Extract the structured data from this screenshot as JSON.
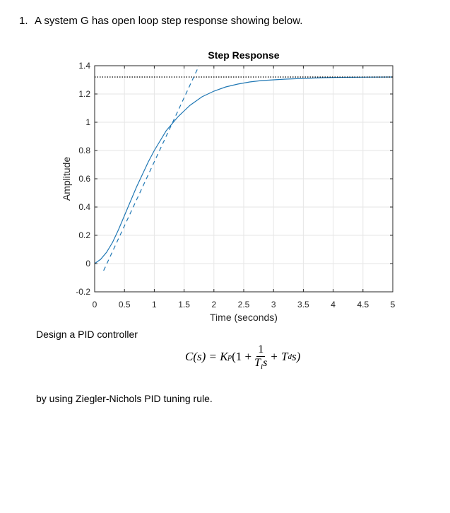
{
  "question": {
    "number": "1.",
    "text": "A system G has open loop step response showing below."
  },
  "chart_data": {
    "type": "line",
    "title": "Step Response",
    "xlabel": "Time (seconds)",
    "ylabel": "Amplitude",
    "xlim": [
      0,
      5
    ],
    "ylim": [
      -0.2,
      1.4
    ],
    "xticks": [
      0,
      0.5,
      1,
      1.5,
      2,
      2.5,
      3,
      3.5,
      4,
      4.5,
      5
    ],
    "xtick_labels": [
      "0",
      "0.5",
      "1",
      "1.5",
      "2",
      "2.5",
      "3",
      "3.5",
      "4",
      "4.5",
      "5"
    ],
    "yticks": [
      -0.2,
      0,
      0.2,
      0.4,
      0.6,
      0.8,
      1,
      1.2,
      1.4
    ],
    "ytick_labels": [
      "-0.2",
      "0",
      "0.2",
      "0.4",
      "0.6",
      "0.8",
      "1",
      "1.2",
      "1.4"
    ],
    "grid": true,
    "series": [
      {
        "style": "solid",
        "color": "#1f77b4",
        "x": [
          0,
          0.1,
          0.2,
          0.3,
          0.4,
          0.5,
          0.6,
          0.7,
          0.8,
          0.9,
          1.0,
          1.1,
          1.2,
          1.3,
          1.4,
          1.5,
          1.6,
          1.7,
          1.8,
          1.9,
          2.0,
          2.2,
          2.4,
          2.6,
          2.8,
          3.0,
          3.2,
          3.5,
          3.8,
          4.0,
          4.3,
          4.6,
          5.0
        ],
        "y": [
          0.0,
          0.03,
          0.08,
          0.15,
          0.24,
          0.34,
          0.44,
          0.54,
          0.63,
          0.72,
          0.8,
          0.87,
          0.94,
          0.99,
          1.04,
          1.08,
          1.12,
          1.15,
          1.18,
          1.2,
          1.22,
          1.25,
          1.27,
          1.285,
          1.295,
          1.3,
          1.305,
          1.31,
          1.315,
          1.317,
          1.318,
          1.319,
          1.32
        ]
      },
      {
        "style": "dashed",
        "color": "#1f77b4",
        "x": [
          0.15,
          1.75
        ],
        "y": [
          -0.05,
          1.4
        ]
      },
      {
        "style": "dotted",
        "color": "#000000",
        "x": [
          0,
          5
        ],
        "y": [
          1.32,
          1.32
        ]
      }
    ]
  },
  "design": {
    "text": "Design a PID controller"
  },
  "formula": {
    "lhs": "C(s) = K",
    "kp_sub": "p",
    "open": "(1 +",
    "frac_num": "1",
    "frac_den": "T",
    "ti_sub": "i",
    "frac_den_s": "s",
    "plus_td": "+ T",
    "td_sub": "d",
    "close": "s)"
  },
  "rule": {
    "text": "by using Ziegler-Nichols PID tuning rule."
  }
}
